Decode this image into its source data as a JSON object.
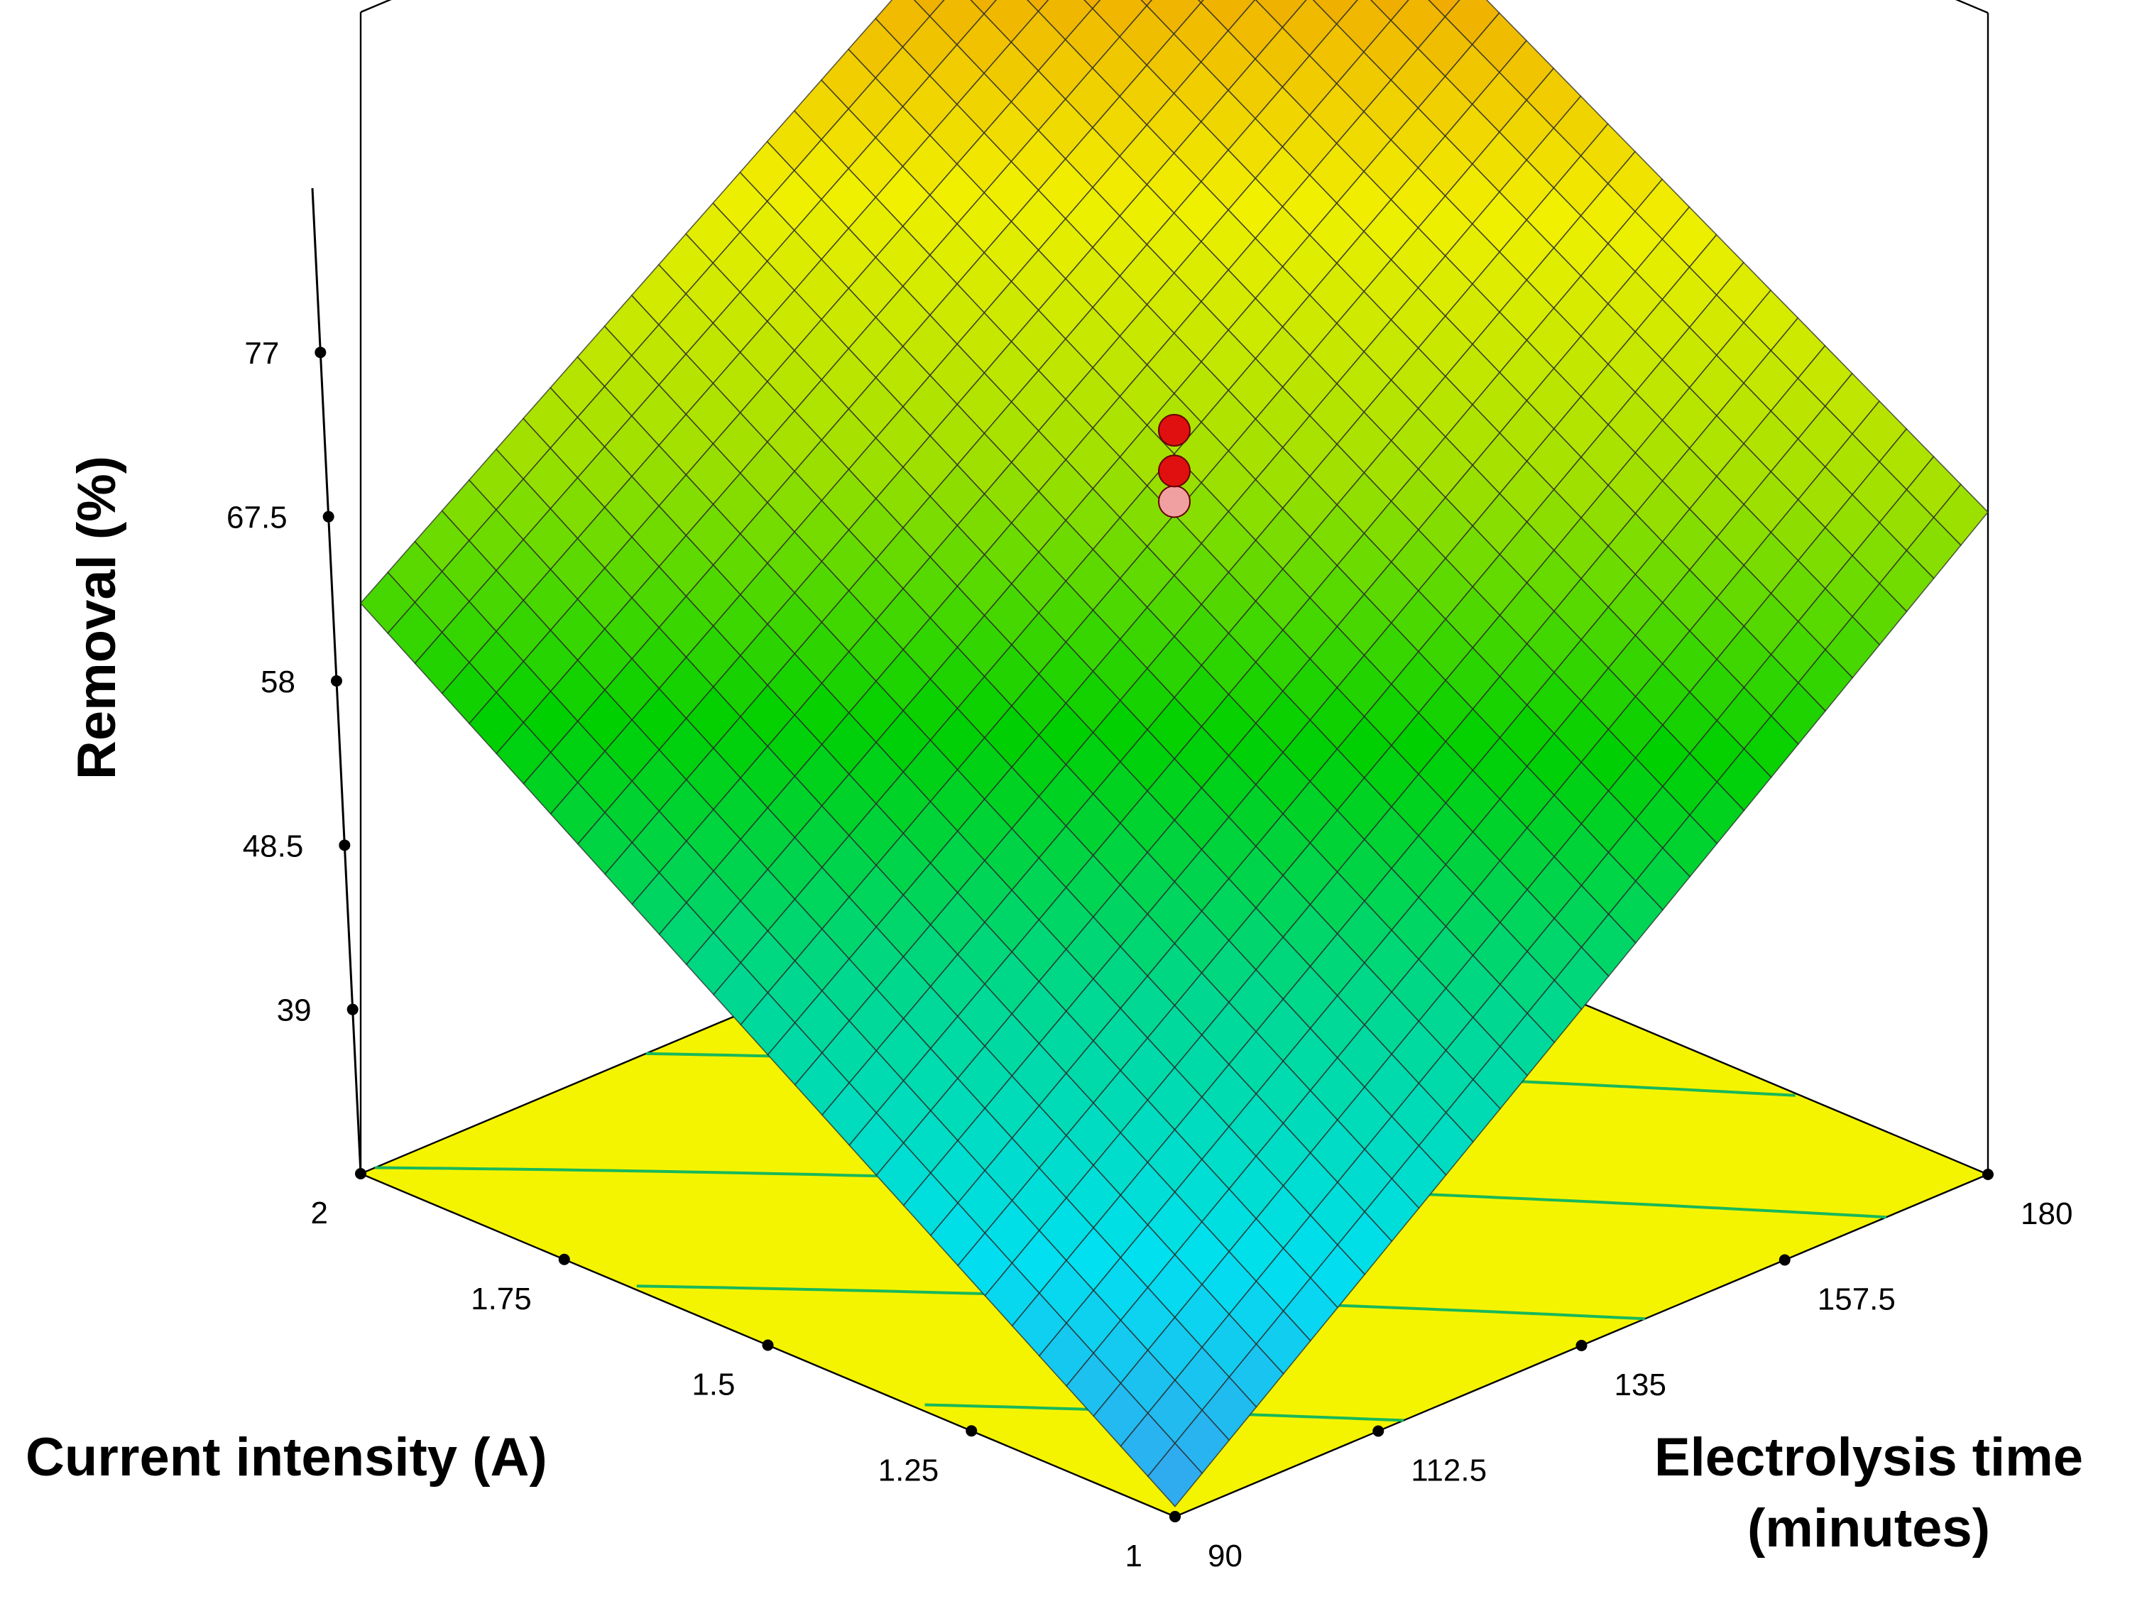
{
  "chart_data": {
    "type": "surface3d",
    "zlabel": "Removal (%)",
    "xlabel": "Current intensity (A)",
    "ylabel": "Electrolysis time\n(minutes)",
    "x_ticks": [
      {
        "value": 2,
        "label": "2"
      },
      {
        "value": 1.75,
        "label": "1.75"
      },
      {
        "value": 1.5,
        "label": "1.5"
      },
      {
        "value": 1.25,
        "label": "1.25"
      },
      {
        "value": 1,
        "label": "1"
      }
    ],
    "y_ticks": [
      {
        "value": 90,
        "label": "90"
      },
      {
        "value": 112.5,
        "label": "112.5"
      },
      {
        "value": 135,
        "label": "135"
      },
      {
        "value": 157.5,
        "label": "157.5"
      },
      {
        "value": 180,
        "label": "180"
      }
    ],
    "z_ticks": [
      {
        "value": 39,
        "label": "39"
      },
      {
        "value": 48.5,
        "label": "48.5"
      },
      {
        "value": 58,
        "label": "58"
      },
      {
        "value": 67.5,
        "label": "67.5"
      },
      {
        "value": 77,
        "label": "77"
      }
    ],
    "xlim": [
      1,
      2
    ],
    "ylim": [
      90,
      180
    ],
    "zlim": [
      29.5,
      86.5
    ],
    "surface_corners": [
      {
        "current_A": 1,
        "time_min": 90,
        "removal_pct": 30
      },
      {
        "current_A": 2,
        "time_min": 90,
        "removal_pct": 57.5
      },
      {
        "current_A": 1,
        "time_min": 180,
        "removal_pct": 62
      },
      {
        "current_A": 2,
        "time_min": 180,
        "removal_pct": 86
      }
    ],
    "design_points": [
      {
        "current_A": 1.5,
        "time_min": 135,
        "removal_pct": 66,
        "color": "#e01010"
      },
      {
        "current_A": 1.5,
        "time_min": 135,
        "removal_pct": 64,
        "color": "#e01010"
      },
      {
        "current_A": 1.5,
        "time_min": 135,
        "removal_pct": 62.5,
        "color": "#f0a0a0"
      }
    ],
    "colormap": [
      "#3aa0f0",
      "#00e0f0",
      "#00d890",
      "#00d000",
      "#a0e000",
      "#f0f000",
      "#f0a000",
      "#f03000"
    ],
    "floor_color": "#f4f400",
    "contour_color": "#18b85a",
    "grid_divisions": 30
  }
}
